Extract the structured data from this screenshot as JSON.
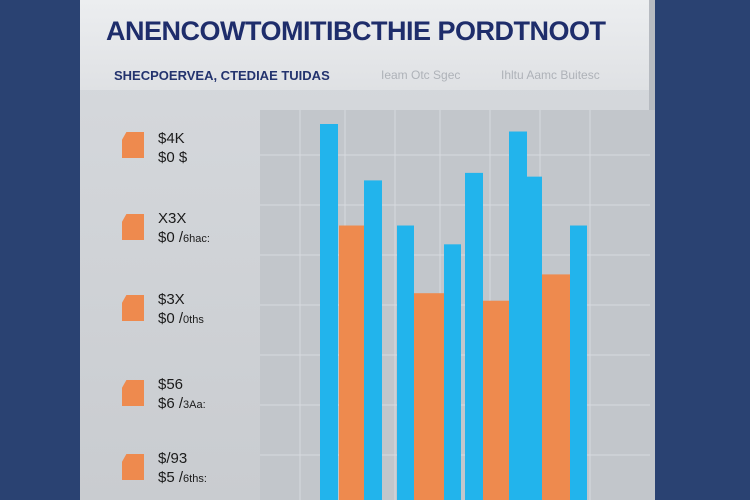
{
  "page": {
    "title": "ANENCOWTOMITIBCTHIE PORDTNOOT",
    "subtitle": "SHECPOERVEA, CTEDIAE TUIDAS",
    "hints": [
      "Ieam Otc Sgec",
      "Ihltu Aamc Buitesc"
    ]
  },
  "legend": {
    "items": [
      {
        "label_top": "$4K",
        "label_bottom": "$0 $",
        "label_suffix": ""
      },
      {
        "label_top": "X3X",
        "label_bottom": "$0 /",
        "label_suffix": "6hac:"
      },
      {
        "label_top": "$3X",
        "label_bottom": "$0 /",
        "label_suffix": "0ths"
      },
      {
        "label_top": "$56",
        "label_bottom": "$6 /",
        "label_suffix": "3Aa:"
      },
      {
        "label_top": "$/93",
        "label_bottom": "$5 /",
        "label_suffix": "6ths:"
      }
    ]
  },
  "colors": {
    "blue": "#22b4ec",
    "orange": "#ee8a4e",
    "grid": "#d7dadf",
    "title": "#1e2d6b",
    "frame": "#2a4272"
  },
  "chart_data": {
    "type": "bar",
    "title": "ANENCOWTOMITIBCTHIE PORDTNOOT",
    "subtitle": "SHECPOERVEA, CTEDIAE TUIDAS",
    "xlabel": "",
    "ylabel": "",
    "ylim": [
      0,
      100
    ],
    "grid": true,
    "legend_position": "left",
    "series": [
      {
        "color": "#22b4ec",
        "values": [
          100,
          85,
          87,
          98
        ]
      },
      {
        "color": "#ee8a4e",
        "values": [
          73,
          55,
          53,
          60
        ]
      },
      {
        "color": "#22b4ec",
        "values": [
          73,
          68,
          86,
          73
        ]
      }
    ],
    "bar_order": [
      {
        "series": 0,
        "index": 0
      },
      {
        "series": 1,
        "index": 0
      },
      {
        "series": 0,
        "index": 1
      },
      {
        "series": 2,
        "index": 0
      },
      {
        "series": 1,
        "index": 1
      },
      {
        "series": 2,
        "index": 1
      },
      {
        "series": 0,
        "index": 2
      },
      {
        "series": 1,
        "index": 2
      },
      {
        "series": 0,
        "index": 3
      },
      {
        "series": 2,
        "index": 2
      },
      {
        "series": 1,
        "index": 3
      },
      {
        "series": 2,
        "index": 3
      }
    ]
  }
}
